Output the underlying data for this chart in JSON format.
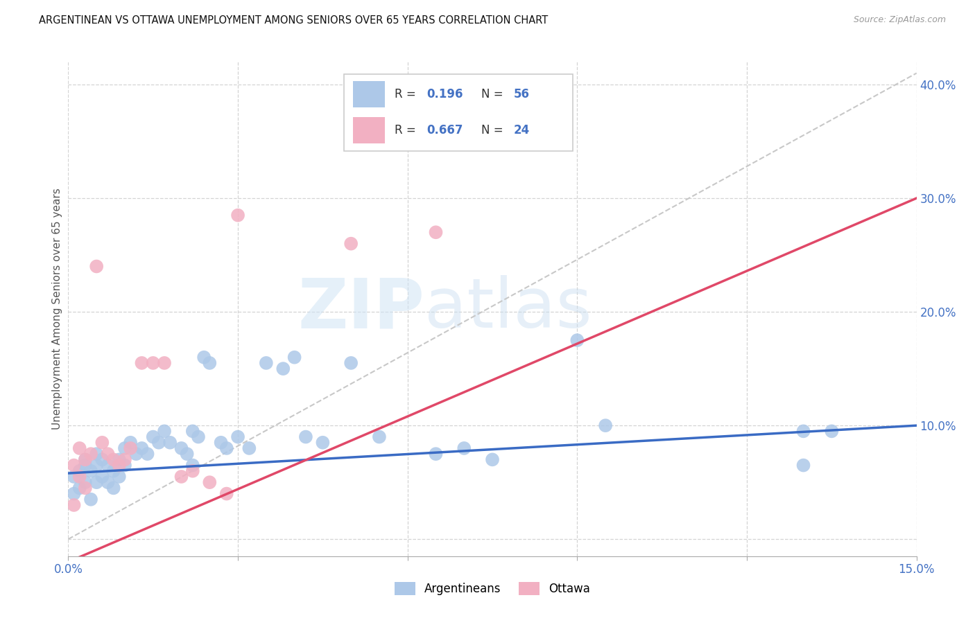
{
  "title": "ARGENTINEAN VS OTTAWA UNEMPLOYMENT AMONG SENIORS OVER 65 YEARS CORRELATION CHART",
  "source": "Source: ZipAtlas.com",
  "ylabel": "Unemployment Among Seniors over 65 years",
  "r_argentinean": "0.196",
  "n_argentinean": "56",
  "r_ottawa": "0.667",
  "n_ottawa": "24",
  "scatter_blue_fill": "#adc8e8",
  "scatter_pink_fill": "#f2b0c2",
  "line_blue_color": "#3a6bc4",
  "line_pink_color": "#e04868",
  "ref_line_color": "#c8c8c8",
  "legend_label_1": "Argentineans",
  "legend_label_2": "Ottawa",
  "blue_x": [
    0.001,
    0.001,
    0.002,
    0.002,
    0.003,
    0.003,
    0.003,
    0.004,
    0.004,
    0.005,
    0.005,
    0.005,
    0.006,
    0.006,
    0.007,
    0.007,
    0.008,
    0.008,
    0.009,
    0.009,
    0.01,
    0.01,
    0.011,
    0.012,
    0.013,
    0.014,
    0.015,
    0.016,
    0.017,
    0.018,
    0.02,
    0.021,
    0.022,
    0.023,
    0.024,
    0.025,
    0.027,
    0.028,
    0.03,
    0.032,
    0.035,
    0.038,
    0.04,
    0.042,
    0.045,
    0.05,
    0.055,
    0.065,
    0.07,
    0.075,
    0.09,
    0.095,
    0.13,
    0.13,
    0.135,
    0.022
  ],
  "blue_y": [
    0.055,
    0.04,
    0.06,
    0.045,
    0.07,
    0.065,
    0.05,
    0.06,
    0.035,
    0.075,
    0.065,
    0.05,
    0.07,
    0.055,
    0.065,
    0.05,
    0.06,
    0.045,
    0.07,
    0.055,
    0.08,
    0.065,
    0.085,
    0.075,
    0.08,
    0.075,
    0.09,
    0.085,
    0.095,
    0.085,
    0.08,
    0.075,
    0.095,
    0.09,
    0.16,
    0.155,
    0.085,
    0.08,
    0.09,
    0.08,
    0.155,
    0.15,
    0.16,
    0.09,
    0.085,
    0.155,
    0.09,
    0.075,
    0.08,
    0.07,
    0.175,
    0.1,
    0.095,
    0.065,
    0.095,
    0.065
  ],
  "pink_x": [
    0.001,
    0.001,
    0.002,
    0.002,
    0.003,
    0.003,
    0.004,
    0.005,
    0.006,
    0.007,
    0.008,
    0.009,
    0.01,
    0.011,
    0.013,
    0.015,
    0.017,
    0.02,
    0.022,
    0.025,
    0.028,
    0.03,
    0.05,
    0.065
  ],
  "pink_y": [
    0.065,
    0.03,
    0.08,
    0.055,
    0.07,
    0.045,
    0.075,
    0.24,
    0.085,
    0.075,
    0.07,
    0.065,
    0.07,
    0.08,
    0.155,
    0.155,
    0.155,
    0.055,
    0.06,
    0.05,
    0.04,
    0.285,
    0.26,
    0.27
  ],
  "xlim": [
    0.0,
    0.15
  ],
  "ylim": [
    -0.015,
    0.42
  ],
  "ytick_positions": [
    0.0,
    0.1,
    0.2,
    0.3,
    0.4
  ],
  "ytick_labels": [
    "",
    "10.0%",
    "20.0%",
    "30.0%",
    "40.0%"
  ],
  "xtick_positions": [
    0.0,
    0.03,
    0.06,
    0.09,
    0.12,
    0.15
  ],
  "xtick_labels": [
    "0.0%",
    "",
    "",
    "",
    "",
    "15.0%"
  ],
  "trend_blue_y0": 0.058,
  "trend_blue_y1": 0.1,
  "trend_pink_y0": -0.02,
  "trend_pink_y1": 0.3
}
